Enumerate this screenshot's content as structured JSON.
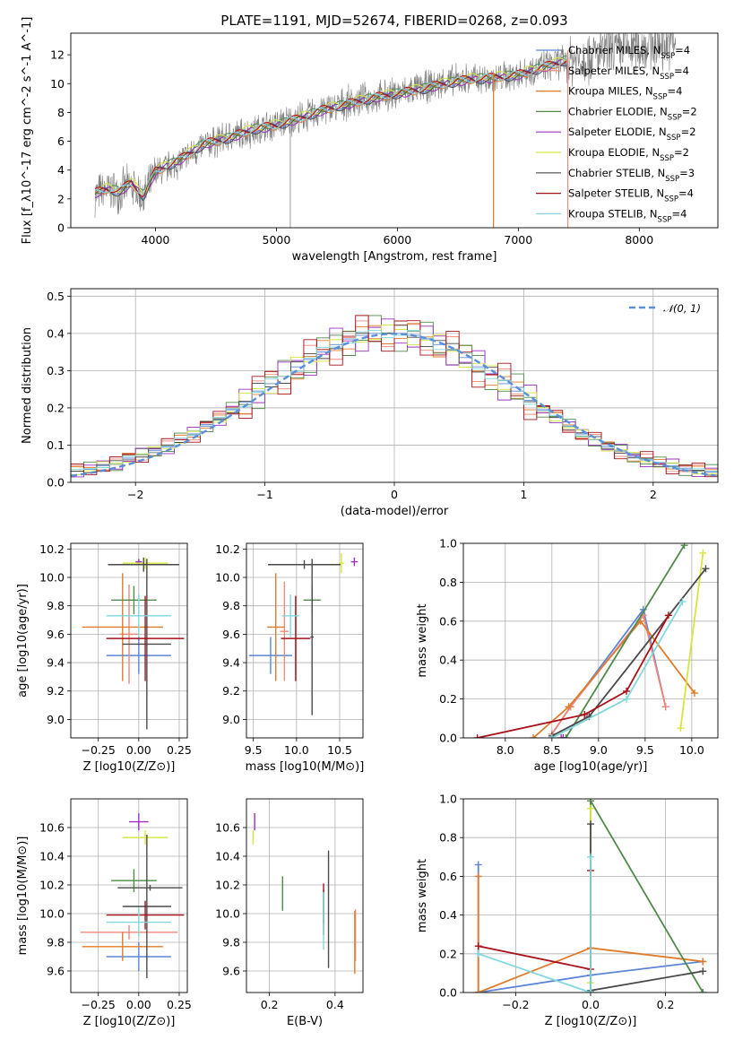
{
  "figure": {
    "title": "PLATE=1191, MJD=52674, FIBERID=0268, z=0.093"
  },
  "colors": {
    "Chabrier MILES": "#5b86d9",
    "Salpeter MILES": "#f08878",
    "Kroupa MILES": "#e07b2b",
    "Chabrier ELODIE": "#4f8a4a",
    "Salpeter ELODIE": "#9b30c0",
    "Kroupa ELODIE": "#d7e63e",
    "Chabrier STELIB": "#4a4a4a",
    "Salpeter STELIB": "#a8111a",
    "Kroupa STELIB": "#7fd8dc",
    "data": "#808080",
    "gaussian": "#5b8fd9"
  },
  "chart_data": [
    {
      "type": "line",
      "title": "PLATE=1191, MJD=52674, FIBERID=0268, z=0.093",
      "xlabel": "wavelength [Angstrom, rest frame]",
      "ylabel": "Flux [f_λ10^-17 erg cm^-2 s^-1 A^-1]",
      "xlim": [
        3300,
        8650
      ],
      "ylim": [
        0,
        13.5
      ],
      "xticks": [
        4000,
        5000,
        6000,
        7000,
        8000
      ],
      "yticks": [
        0,
        2,
        4,
        6,
        8,
        10,
        12
      ],
      "grid": false,
      "legend_position": "right",
      "data_curve": {
        "x": [
          3500,
          3600,
          3700,
          3800,
          3900,
          4000,
          4200,
          4400,
          4600,
          4800,
          5000,
          5200,
          5400,
          5600,
          5800,
          6000,
          6200,
          6400,
          6600,
          6800,
          7000,
          7200,
          7400,
          7600,
          7800,
          8000,
          8200,
          8300
        ],
        "y": [
          2.3,
          2.6,
          2.5,
          3.0,
          2.0,
          3.8,
          4.6,
          5.7,
          6.3,
          6.7,
          7.2,
          7.6,
          8.2,
          8.7,
          9.0,
          9.3,
          9.7,
          10.1,
          10.3,
          10.3,
          10.7,
          11.2,
          11.6,
          11.9,
          12.3,
          12.6,
          12.8,
          12.9
        ]
      },
      "model_curve": {
        "x": [
          3500,
          3600,
          3700,
          3800,
          3900,
          4000,
          4200,
          4400,
          4600,
          4800,
          5000,
          5200,
          5400,
          5600,
          5800,
          6000,
          6200,
          6400,
          6600,
          6800,
          7000,
          7200,
          7400
        ],
        "y": [
          2.4,
          2.7,
          2.5,
          3.1,
          2.2,
          3.9,
          4.7,
          5.8,
          6.2,
          6.8,
          7.1,
          7.6,
          8.2,
          8.6,
          9.0,
          9.3,
          9.6,
          10.0,
          10.3,
          10.4,
          10.6,
          11.1,
          11.6
        ]
      },
      "series": [
        {
          "name": "Chabrier MILES, N_SSP=4"
        },
        {
          "name": "Salpeter MILES, N_SSP=4"
        },
        {
          "name": "Kroupa MILES, N_SSP=4"
        },
        {
          "name": "Chabrier ELODIE, N_SSP=2"
        },
        {
          "name": "Salpeter ELODIE, N_SSP=2"
        },
        {
          "name": "Kroupa ELODIE, N_SSP=2"
        },
        {
          "name": "Chabrier STELIB, N_SSP=3"
        },
        {
          "name": "Salpeter STELIB, N_SSP=4"
        },
        {
          "name": "Kroupa STELIB, N_SSP=4"
        }
      ]
    },
    {
      "type": "line",
      "xlabel": "(data-model)/error",
      "ylabel": "Normed distribution",
      "xlim": [
        -2.5,
        2.5
      ],
      "ylim": [
        0,
        0.52
      ],
      "xticks": [
        -2,
        -1,
        0,
        1,
        2
      ],
      "yticks": [
        0.0,
        0.1,
        0.2,
        0.3,
        0.4,
        0.5
      ],
      "grid": true,
      "legend": {
        "name": "𝒩(0, 1)",
        "position": "top-right"
      },
      "bin_centers": [
        -2.45,
        -2.35,
        -2.25,
        -2.15,
        -2.05,
        -1.95,
        -1.85,
        -1.75,
        -1.65,
        -1.55,
        -1.45,
        -1.35,
        -1.25,
        -1.15,
        -1.05,
        -0.95,
        -0.85,
        -0.75,
        -0.65,
        -0.55,
        -0.45,
        -0.35,
        -0.25,
        -0.15,
        -0.05,
        0.05,
        0.15,
        0.25,
        0.35,
        0.45,
        0.55,
        0.65,
        0.75,
        0.85,
        0.95,
        1.05,
        1.15,
        1.25,
        1.35,
        1.45,
        1.55,
        1.65,
        1.75,
        1.85,
        1.95,
        2.05,
        2.15,
        2.25,
        2.35,
        2.45
      ],
      "hist_envelope": [
        0.03,
        0.035,
        0.045,
        0.05,
        0.065,
        0.075,
        0.085,
        0.095,
        0.115,
        0.13,
        0.155,
        0.17,
        0.195,
        0.215,
        0.245,
        0.265,
        0.285,
        0.31,
        0.33,
        0.35,
        0.37,
        0.385,
        0.395,
        0.4,
        0.4,
        0.4,
        0.395,
        0.385,
        0.37,
        0.355,
        0.335,
        0.31,
        0.29,
        0.265,
        0.245,
        0.22,
        0.195,
        0.175,
        0.15,
        0.13,
        0.115,
        0.095,
        0.085,
        0.07,
        0.06,
        0.05,
        0.045,
        0.038,
        0.032,
        0.028
      ]
    },
    {
      "type": "scatter",
      "xlabel": "Z [log10(Z/Z⊙)]",
      "ylabel": "age  [log10(age/yr)]",
      "xlim": [
        -0.42,
        0.3
      ],
      "ylim": [
        8.87,
        10.24
      ],
      "xticks": [
        "−0.25",
        "0.00",
        "0.25"
      ],
      "xtick_values": [
        -0.25,
        0.0,
        0.25
      ],
      "yticks": [
        9.0,
        9.2,
        9.4,
        9.6,
        9.8,
        10.0,
        10.2
      ],
      "points": [
        {
          "series": "Chabrier MILES",
          "x": 0.0,
          "y": 9.45,
          "xerr": 0.2,
          "yerr": 0.13
        },
        {
          "series": "Salpeter MILES",
          "x": -0.06,
          "y": 9.6,
          "xerr": 0.06,
          "yerr": 0.35
        },
        {
          "series": "Kroupa MILES",
          "x": -0.1,
          "y": 9.65,
          "xerr": 0.25,
          "yerr": 0.38
        },
        {
          "series": "Chabrier ELODIE",
          "x": -0.03,
          "y": 9.84,
          "xerr": 0.14,
          "yerr": 0.1
        },
        {
          "series": "Salpeter ELODIE",
          "x": 0.0,
          "y": 10.11,
          "xerr": 0.02,
          "yerr": 0.02
        },
        {
          "series": "Kroupa ELODIE",
          "x": 0.04,
          "y": 10.1,
          "xerr": 0.14,
          "yerr": 0.04
        },
        {
          "series": "Chabrier STELIB",
          "x": 0.05,
          "y": 9.53,
          "xerr": 0.15,
          "yerr": 0.6
        },
        {
          "series": "Salpeter STELIB",
          "x": 0.04,
          "y": 9.57,
          "xerr": 0.24,
          "yerr": 0.3
        },
        {
          "series": "Kroupa STELIB",
          "x": 0.0,
          "y": 9.73,
          "xerr": 0.2,
          "yerr": 0.15
        }
      ],
      "extra_points": [
        {
          "series": "Chabrier STELIB",
          "x": 0.03,
          "y": 10.09,
          "xerr": 0.22,
          "yerr": 0.05
        }
      ]
    },
    {
      "type": "scatter",
      "xlabel": "mass [log10(M/M⊙)]",
      "ylabel": "",
      "xlim": [
        9.42,
        10.77
      ],
      "ylim": [
        8.87,
        10.24
      ],
      "xticks": [
        9.5,
        10.0,
        10.5
      ],
      "yticks": [
        9.0,
        9.2,
        9.4,
        9.6,
        9.8,
        10.0,
        10.2
      ],
      "points": [
        {
          "series": "Chabrier MILES",
          "x": 9.7,
          "y": 9.45,
          "xerr": 0.25,
          "yerr": 0.13
        },
        {
          "series": "Salpeter MILES",
          "x": 9.86,
          "y": 9.62,
          "xerr": 0.05,
          "yerr": 0.35
        },
        {
          "series": "Kroupa MILES",
          "x": 9.76,
          "y": 9.65,
          "xerr": 0.1,
          "yerr": 0.38
        },
        {
          "series": "Chabrier ELODIE",
          "x": 10.18,
          "y": 9.84,
          "xerr": 0.1,
          "yerr": 0.1
        },
        {
          "series": "Salpeter ELODIE",
          "x": 10.67,
          "y": 10.11,
          "xerr": 0.04,
          "yerr": 0.03
        },
        {
          "series": "Kroupa ELODIE",
          "x": 10.52,
          "y": 10.1,
          "xerr": 0.03,
          "yerr": 0.07
        },
        {
          "series": "Chabrier STELIB",
          "x": 10.18,
          "y": 9.58,
          "xerr": 0.02,
          "yerr": 0.55
        },
        {
          "series": "Salpeter STELIB",
          "x": 9.99,
          "y": 9.57,
          "xerr": 0.17,
          "yerr": 0.3
        },
        {
          "series": "Kroupa STELIB",
          "x": 9.93,
          "y": 9.73,
          "xerr": 0.1,
          "yerr": 0.15
        }
      ],
      "extra_points": [
        {
          "series": "Chabrier STELIB",
          "x": 10.09,
          "y": 10.09,
          "xerr": 0.42,
          "yerr": 0.03
        }
      ]
    },
    {
      "type": "line",
      "xlabel": "age  [log10(age/yr)]",
      "ylabel": "mass weight",
      "xlim": [
        7.55,
        10.28
      ],
      "ylim": [
        0,
        1.0
      ],
      "xticks": [
        8.0,
        8.5,
        9.0,
        9.5,
        10.0
      ],
      "yticks": [
        0.0,
        0.2,
        0.4,
        0.6,
        0.8,
        1.0
      ],
      "grid": true,
      "series": [
        {
          "color_key": "Chabrier MILES",
          "x": [
            8.5,
            8.7,
            9.48,
            9.72
          ],
          "y": [
            0.02,
            0.16,
            0.66,
            0.16
          ]
        },
        {
          "color_key": "Salpeter MILES",
          "x": [
            8.5,
            8.7,
            9.48,
            9.72
          ],
          "y": [
            0.02,
            0.16,
            0.63,
            0.16
          ]
        },
        {
          "color_key": "Kroupa MILES",
          "x": [
            8.3,
            8.68,
            9.45,
            10.03
          ],
          "y": [
            0.0,
            0.16,
            0.6,
            0.23
          ]
        },
        {
          "color_key": "Chabrier ELODIE",
          "x": [
            8.65,
            9.92
          ],
          "y": [
            0.0,
            0.99
          ]
        },
        {
          "color_key": "Salpeter ELODIE",
          "x": [
            8.6,
            8.62
          ],
          "y": [
            0.0,
            0.0
          ]
        },
        {
          "color_key": "Kroupa ELODIE",
          "x": [
            9.88,
            10.12
          ],
          "y": [
            0.05,
            0.95
          ]
        },
        {
          "color_key": "Chabrier STELIB",
          "x": [
            8.5,
            8.9,
            10.15
          ],
          "y": [
            0.01,
            0.11,
            0.87
          ]
        },
        {
          "color_key": "Salpeter STELIB",
          "x": [
            7.7,
            8.85,
            9.3,
            9.75
          ],
          "y": [
            0.0,
            0.12,
            0.24,
            0.63
          ]
        },
        {
          "color_key": "Kroupa STELIB",
          "x": [
            8.5,
            9.3,
            9.9
          ],
          "y": [
            0.0,
            0.2,
            0.7
          ]
        }
      ]
    },
    {
      "type": "scatter",
      "xlabel": "Z [log10(Z/Z⊙)]",
      "ylabel": "mass [log10(M/M⊙)]",
      "xlim": [
        -0.42,
        0.3
      ],
      "ylim": [
        9.45,
        10.8
      ],
      "xticks": [
        "−0.25",
        "0.00",
        "0.25"
      ],
      "xtick_values": [
        -0.25,
        0.0,
        0.25
      ],
      "yticks": [
        9.6,
        9.8,
        10.0,
        10.2,
        10.4,
        10.6
      ],
      "points": [
        {
          "series": "Chabrier MILES",
          "x": 0.0,
          "y": 9.7,
          "xerr": 0.2,
          "yerr": 0.1
        },
        {
          "series": "Salpeter MILES",
          "x": -0.06,
          "y": 9.87,
          "xerr": 0.3,
          "yerr": 0.05
        },
        {
          "series": "Kroupa MILES",
          "x": -0.1,
          "y": 9.77,
          "xerr": 0.25,
          "yerr": 0.1
        },
        {
          "series": "Chabrier ELODIE",
          "x": -0.03,
          "y": 10.23,
          "xerr": 0.14,
          "yerr": 0.08
        },
        {
          "series": "Salpeter ELODIE",
          "x": 0.0,
          "y": 10.64,
          "xerr": 0.06,
          "yerr": 0.06
        },
        {
          "series": "Kroupa ELODIE",
          "x": 0.04,
          "y": 10.53,
          "xerr": 0.14,
          "yerr": 0.05
        },
        {
          "series": "Chabrier STELIB",
          "x": 0.05,
          "y": 10.05,
          "xerr": 0.15,
          "yerr": 0.5
        },
        {
          "series": "Salpeter STELIB",
          "x": 0.04,
          "y": 9.99,
          "xerr": 0.24,
          "yerr": 0.1
        },
        {
          "series": "Kroupa STELIB",
          "x": 0.0,
          "y": 9.94,
          "xerr": 0.2,
          "yerr": 0.1
        }
      ],
      "extra_points": [
        {
          "series": "Chabrier STELIB",
          "x": 0.07,
          "y": 10.18,
          "xerr": 0.2,
          "yerr": 0.02
        }
      ]
    },
    {
      "type": "scatter",
      "xlabel": "E(B-V)",
      "ylabel": "",
      "xlim": [
        0.13,
        0.485
      ],
      "ylim": [
        9.45,
        10.8
      ],
      "xticks": [
        0.2,
        0.4
      ],
      "yticks": [
        9.6,
        9.8,
        10.0,
        10.2,
        10.4,
        10.6
      ],
      "points": [
        {
          "series": "Chabrier MILES",
          "x": 0.365,
          "y": 10.05,
          "yerr": 0.12
        },
        {
          "series": "Salpeter MILES",
          "x": 0.462,
          "y": 9.85,
          "yerr": 0.18
        },
        {
          "series": "Kroupa MILES",
          "x": 0.46,
          "y": 9.8,
          "yerr": 0.22
        },
        {
          "series": "Chabrier ELODIE",
          "x": 0.24,
          "y": 10.14,
          "yerr": 0.12
        },
        {
          "series": "Salpeter ELODIE",
          "x": 0.155,
          "y": 10.64,
          "yerr": 0.06
        },
        {
          "series": "Kroupa ELODIE",
          "x": 0.15,
          "y": 10.53,
          "yerr": 0.05
        },
        {
          "series": "Chabrier STELIB",
          "x": 0.38,
          "y": 10.03,
          "yerr": 0.41
        },
        {
          "series": "Salpeter STELIB",
          "x": 0.365,
          "y": 10.03,
          "yerr": 0.18
        },
        {
          "series": "Kroupa STELIB",
          "x": 0.365,
          "y": 9.95,
          "yerr": 0.2
        }
      ]
    },
    {
      "type": "line",
      "xlabel": "Z [log10(Z/Z⊙)]",
      "ylabel": "mass weight",
      "xlim": [
        -0.34,
        0.34
      ],
      "ylim": [
        0,
        1.0
      ],
      "xticks": [
        "−0.2",
        "0.0",
        "0.2"
      ],
      "xtick_values": [
        -0.2,
        0.0,
        0.2
      ],
      "yticks": [
        0.0,
        0.2,
        0.4,
        0.6,
        0.8,
        1.0
      ],
      "grid": true,
      "series": [
        {
          "color_key": "Chabrier MILES",
          "x": [
            -0.3,
            -0.3,
            0.0,
            0.3
          ],
          "y": [
            0.66,
            0.0,
            0.09,
            0.16
          ]
        },
        {
          "color_key": "Kroupa MILES",
          "x": [
            -0.3,
            -0.3,
            0.0,
            0.3
          ],
          "y": [
            0.6,
            0.0,
            0.23,
            0.16
          ]
        },
        {
          "color_key": "Chabrier ELODIE",
          "x": [
            0.0,
            0.0,
            0.3
          ],
          "y": [
            0.0,
            0.99,
            0.0
          ]
        },
        {
          "color_key": "Kroupa ELODIE",
          "x": [
            0.0,
            0.0
          ],
          "y": [
            0.05,
            0.95
          ]
        },
        {
          "color_key": "Chabrier STELIB",
          "x": [
            0.0,
            0.0,
            0.3
          ],
          "y": [
            0.87,
            0.01,
            0.11
          ]
        },
        {
          "color_key": "Salpeter STELIB",
          "x": [
            -0.3,
            0.0,
            0.0
          ],
          "y": [
            0.24,
            0.12,
            0.63
          ]
        },
        {
          "color_key": "Kroupa STELIB",
          "x": [
            -0.3,
            0.0,
            0.0
          ],
          "y": [
            0.2,
            0.0,
            0.7
          ]
        }
      ]
    }
  ]
}
